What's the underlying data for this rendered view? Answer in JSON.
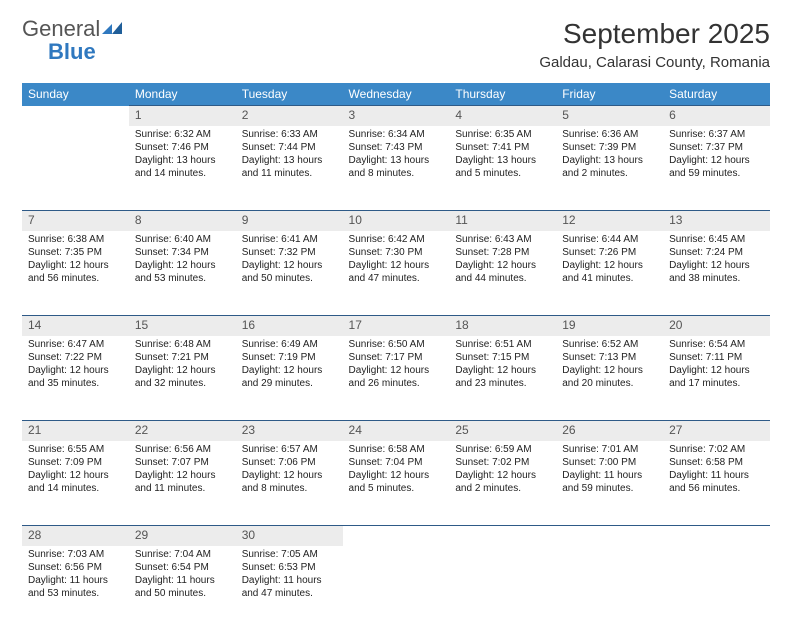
{
  "logo": {
    "text1": "General",
    "text2": "Blue"
  },
  "title": "September 2025",
  "location": "Galdau, Calarasi County, Romania",
  "headers": [
    "Sunday",
    "Monday",
    "Tuesday",
    "Wednesday",
    "Thursday",
    "Friday",
    "Saturday"
  ],
  "colors": {
    "header_bg": "#3b88c7",
    "header_fg": "#ffffff",
    "daynum_bg": "#ececec",
    "rule": "#2e5a87",
    "logo_gray": "#555555",
    "logo_blue": "#2f78bf"
  },
  "weeks": [
    {
      "nums": [
        "",
        "1",
        "2",
        "3",
        "4",
        "5",
        "6"
      ],
      "cells": [
        null,
        {
          "sr": "Sunrise: 6:32 AM",
          "ss": "Sunset: 7:46 PM",
          "dl": "Daylight: 13 hours and 14 minutes."
        },
        {
          "sr": "Sunrise: 6:33 AM",
          "ss": "Sunset: 7:44 PM",
          "dl": "Daylight: 13 hours and 11 minutes."
        },
        {
          "sr": "Sunrise: 6:34 AM",
          "ss": "Sunset: 7:43 PM",
          "dl": "Daylight: 13 hours and 8 minutes."
        },
        {
          "sr": "Sunrise: 6:35 AM",
          "ss": "Sunset: 7:41 PM",
          "dl": "Daylight: 13 hours and 5 minutes."
        },
        {
          "sr": "Sunrise: 6:36 AM",
          "ss": "Sunset: 7:39 PM",
          "dl": "Daylight: 13 hours and 2 minutes."
        },
        {
          "sr": "Sunrise: 6:37 AM",
          "ss": "Sunset: 7:37 PM",
          "dl": "Daylight: 12 hours and 59 minutes."
        }
      ]
    },
    {
      "nums": [
        "7",
        "8",
        "9",
        "10",
        "11",
        "12",
        "13"
      ],
      "cells": [
        {
          "sr": "Sunrise: 6:38 AM",
          "ss": "Sunset: 7:35 PM",
          "dl": "Daylight: 12 hours and 56 minutes."
        },
        {
          "sr": "Sunrise: 6:40 AM",
          "ss": "Sunset: 7:34 PM",
          "dl": "Daylight: 12 hours and 53 minutes."
        },
        {
          "sr": "Sunrise: 6:41 AM",
          "ss": "Sunset: 7:32 PM",
          "dl": "Daylight: 12 hours and 50 minutes."
        },
        {
          "sr": "Sunrise: 6:42 AM",
          "ss": "Sunset: 7:30 PM",
          "dl": "Daylight: 12 hours and 47 minutes."
        },
        {
          "sr": "Sunrise: 6:43 AM",
          "ss": "Sunset: 7:28 PM",
          "dl": "Daylight: 12 hours and 44 minutes."
        },
        {
          "sr": "Sunrise: 6:44 AM",
          "ss": "Sunset: 7:26 PM",
          "dl": "Daylight: 12 hours and 41 minutes."
        },
        {
          "sr": "Sunrise: 6:45 AM",
          "ss": "Sunset: 7:24 PM",
          "dl": "Daylight: 12 hours and 38 minutes."
        }
      ]
    },
    {
      "nums": [
        "14",
        "15",
        "16",
        "17",
        "18",
        "19",
        "20"
      ],
      "cells": [
        {
          "sr": "Sunrise: 6:47 AM",
          "ss": "Sunset: 7:22 PM",
          "dl": "Daylight: 12 hours and 35 minutes."
        },
        {
          "sr": "Sunrise: 6:48 AM",
          "ss": "Sunset: 7:21 PM",
          "dl": "Daylight: 12 hours and 32 minutes."
        },
        {
          "sr": "Sunrise: 6:49 AM",
          "ss": "Sunset: 7:19 PM",
          "dl": "Daylight: 12 hours and 29 minutes."
        },
        {
          "sr": "Sunrise: 6:50 AM",
          "ss": "Sunset: 7:17 PM",
          "dl": "Daylight: 12 hours and 26 minutes."
        },
        {
          "sr": "Sunrise: 6:51 AM",
          "ss": "Sunset: 7:15 PM",
          "dl": "Daylight: 12 hours and 23 minutes."
        },
        {
          "sr": "Sunrise: 6:52 AM",
          "ss": "Sunset: 7:13 PM",
          "dl": "Daylight: 12 hours and 20 minutes."
        },
        {
          "sr": "Sunrise: 6:54 AM",
          "ss": "Sunset: 7:11 PM",
          "dl": "Daylight: 12 hours and 17 minutes."
        }
      ]
    },
    {
      "nums": [
        "21",
        "22",
        "23",
        "24",
        "25",
        "26",
        "27"
      ],
      "cells": [
        {
          "sr": "Sunrise: 6:55 AM",
          "ss": "Sunset: 7:09 PM",
          "dl": "Daylight: 12 hours and 14 minutes."
        },
        {
          "sr": "Sunrise: 6:56 AM",
          "ss": "Sunset: 7:07 PM",
          "dl": "Daylight: 12 hours and 11 minutes."
        },
        {
          "sr": "Sunrise: 6:57 AM",
          "ss": "Sunset: 7:06 PM",
          "dl": "Daylight: 12 hours and 8 minutes."
        },
        {
          "sr": "Sunrise: 6:58 AM",
          "ss": "Sunset: 7:04 PM",
          "dl": "Daylight: 12 hours and 5 minutes."
        },
        {
          "sr": "Sunrise: 6:59 AM",
          "ss": "Sunset: 7:02 PM",
          "dl": "Daylight: 12 hours and 2 minutes."
        },
        {
          "sr": "Sunrise: 7:01 AM",
          "ss": "Sunset: 7:00 PM",
          "dl": "Daylight: 11 hours and 59 minutes."
        },
        {
          "sr": "Sunrise: 7:02 AM",
          "ss": "Sunset: 6:58 PM",
          "dl": "Daylight: 11 hours and 56 minutes."
        }
      ]
    },
    {
      "nums": [
        "28",
        "29",
        "30",
        "",
        "",
        "",
        ""
      ],
      "cells": [
        {
          "sr": "Sunrise: 7:03 AM",
          "ss": "Sunset: 6:56 PM",
          "dl": "Daylight: 11 hours and 53 minutes."
        },
        {
          "sr": "Sunrise: 7:04 AM",
          "ss": "Sunset: 6:54 PM",
          "dl": "Daylight: 11 hours and 50 minutes."
        },
        {
          "sr": "Sunrise: 7:05 AM",
          "ss": "Sunset: 6:53 PM",
          "dl": "Daylight: 11 hours and 47 minutes."
        },
        null,
        null,
        null,
        null
      ]
    }
  ]
}
